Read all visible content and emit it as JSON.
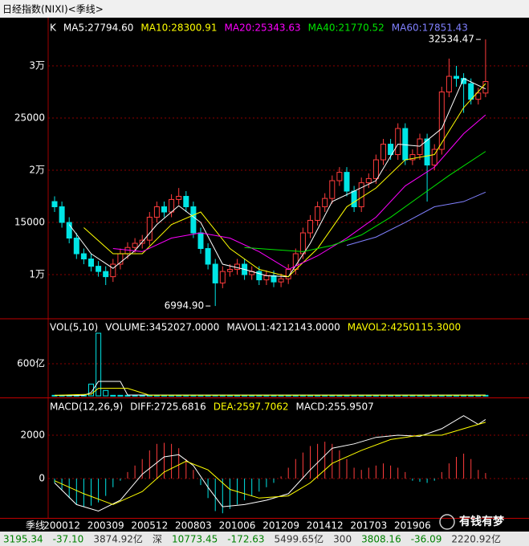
{
  "window_title": "日经指数(NIXI)<季线>",
  "period_label": "季线",
  "watermark": "有钱有梦",
  "chart_data": [
    {
      "type": "candlestick",
      "label": "K",
      "up_color": "#ff3c3c",
      "down_color": "#00e5e5",
      "categories": [
        null,
        "200012",
        null,
        null,
        null,
        null,
        null,
        "200309",
        null,
        null,
        null,
        null,
        null,
        "200512",
        null,
        null,
        null,
        null,
        null,
        "200803",
        null,
        null,
        null,
        null,
        null,
        "201006",
        null,
        null,
        null,
        null,
        null,
        "201209",
        null,
        null,
        null,
        null,
        null,
        "201412",
        null,
        null,
        null,
        null,
        null,
        "201703",
        null,
        null,
        null,
        null,
        null,
        "201906",
        null,
        null,
        null,
        null,
        null,
        null,
        null,
        null,
        null,
        null
      ],
      "ohlc": [
        [
          17000,
          17500,
          16000,
          16500
        ],
        [
          16500,
          17000,
          14500,
          15000
        ],
        [
          15000,
          15500,
          13000,
          13500
        ],
        [
          13500,
          14000,
          11500,
          12000
        ],
        [
          12000,
          12500,
          11000,
          11500
        ],
        [
          11500,
          12000,
          10300,
          10800
        ],
        [
          10800,
          11300,
          9800,
          10300
        ],
        [
          10300,
          10800,
          9000,
          9800
        ],
        [
          9800,
          11500,
          9300,
          11000
        ],
        [
          11000,
          12500,
          10500,
          12000
        ],
        [
          12000,
          13100,
          11500,
          12600
        ],
        [
          12600,
          13500,
          12100,
          13000
        ],
        [
          13000,
          13800,
          12500,
          13300
        ],
        [
          13300,
          16000,
          12800,
          15500
        ],
        [
          15500,
          17000,
          15000,
          16500
        ],
        [
          16500,
          17000,
          15500,
          16000
        ],
        [
          16000,
          17700,
          15500,
          17200
        ],
        [
          17200,
          18300,
          16700,
          17500
        ],
        [
          17500,
          18000,
          16000,
          16500
        ],
        [
          16500,
          17000,
          13500,
          14000
        ],
        [
          14000,
          14500,
          12000,
          12500
        ],
        [
          12500,
          13000,
          10500,
          11000
        ],
        [
          11000,
          11500,
          6994.9,
          9200
        ],
        [
          9200,
          10800,
          8700,
          10300
        ],
        [
          10300,
          11000,
          9800,
          10500
        ],
        [
          10500,
          11500,
          10000,
          11000
        ],
        [
          11000,
          11500,
          9500,
          10000
        ],
        [
          10000,
          10800,
          9500,
          10300
        ],
        [
          10300,
          10800,
          9000,
          9500
        ],
        [
          9500,
          10400,
          9000,
          9900
        ],
        [
          9900,
          10400,
          8800,
          9300
        ],
        [
          9300,
          10100,
          8800,
          9600
        ],
        [
          9600,
          11000,
          9100,
          10500
        ],
        [
          10500,
          12500,
          10000,
          12000
        ],
        [
          12000,
          14500,
          11500,
          14000
        ],
        [
          14000,
          15700,
          13500,
          15200
        ],
        [
          15200,
          17000,
          14700,
          16500
        ],
        [
          16500,
          17800,
          16000,
          17300
        ],
        [
          17300,
          19500,
          16800,
          19000
        ],
        [
          19000,
          20300,
          18500,
          19800
        ],
        [
          19800,
          20300,
          17500,
          18000
        ],
        [
          18000,
          18500,
          16000,
          16500
        ],
        [
          16500,
          19300,
          16000,
          18800
        ],
        [
          18800,
          19700,
          18300,
          19200
        ],
        [
          19200,
          21500,
          18700,
          21000
        ],
        [
          21000,
          23000,
          20500,
          22500
        ],
        [
          22500,
          23000,
          21000,
          21500
        ],
        [
          21500,
          24500,
          21000,
          24000
        ],
        [
          24000,
          24500,
          20500,
          21000
        ],
        [
          21000,
          22000,
          20500,
          21500
        ],
        [
          21500,
          23500,
          21000,
          23000
        ],
        [
          23000,
          23500,
          17000,
          20500
        ],
        [
          20500,
          22500,
          20000,
          22000
        ],
        [
          22000,
          28000,
          21500,
          27500
        ],
        [
          27500,
          30700,
          27000,
          29000
        ],
        [
          29000,
          30000,
          28000,
          28800
        ],
        [
          28800,
          29300,
          25500,
          28300
        ],
        [
          28300,
          28800,
          26300,
          26800
        ],
        [
          26800,
          27900,
          26300,
          27400
        ],
        [
          27400,
          32534.47,
          27000,
          28500
        ]
      ],
      "series": [
        {
          "name": "MA5:27794.60",
          "color": "#ffffff",
          "x": [
            2,
            5,
            8,
            11,
            14,
            17,
            20,
            23,
            26,
            29,
            32,
            35,
            38,
            41,
            44,
            47,
            50,
            53,
            56,
            59
          ],
          "values": [
            14800,
            12000,
            10600,
            12300,
            14800,
            16600,
            15000,
            11000,
            10500,
            9900,
            9800,
            13000,
            17000,
            18000,
            19000,
            22500,
            22300,
            24000,
            28800,
            27800
          ]
        },
        {
          "name": "MA10:28300.91",
          "color": "#ffff00",
          "x": [
            4,
            8,
            12,
            16,
            20,
            24,
            28,
            32,
            36,
            40,
            44,
            48,
            52,
            56,
            59
          ],
          "values": [
            14500,
            12000,
            12000,
            14800,
            16000,
            12500,
            10500,
            9800,
            12500,
            16500,
            18300,
            21000,
            21500,
            26000,
            28300
          ]
        },
        {
          "name": "MA20:25343.63",
          "color": "#ff00ff",
          "x": [
            8,
            12,
            16,
            20,
            24,
            28,
            32,
            36,
            40,
            44,
            48,
            52,
            56,
            59
          ],
          "values": [
            12500,
            12200,
            13500,
            14000,
            13500,
            12200,
            10500,
            11800,
            13500,
            15500,
            18500,
            20300,
            23500,
            25300
          ]
        },
        {
          "name": "MA40:21770.52",
          "color": "#00e600",
          "x": [
            26,
            30,
            34,
            38,
            42,
            46,
            50,
            54,
            59
          ],
          "values": [
            12600,
            12400,
            12200,
            12800,
            13800,
            15500,
            17500,
            19500,
            21800
          ]
        },
        {
          "name": "MA60:17851.43",
          "color": "#8080ff",
          "x": [
            40,
            44,
            48,
            52,
            56,
            59
          ],
          "values": [
            12800,
            13600,
            15000,
            16500,
            17000,
            17900
          ]
        }
      ],
      "annotations": [
        {
          "value": 32534.47,
          "label": "32534.47"
        },
        {
          "value": 6994.9,
          "label": "6994.90"
        }
      ],
      "ylim": [
        5770,
        34620
      ],
      "yticks": [
        {
          "value": 10000,
          "label": "1万"
        },
        15000,
        {
          "value": 20000,
          "label": "2万"
        },
        25000,
        {
          "value": 30000,
          "label": "3万"
        }
      ]
    },
    {
      "type": "volume",
      "label": "VOL(5,10)",
      "name": "VOLUME:3452027.0000",
      "color": "#00e5e5",
      "values": [
        10,
        10,
        10,
        10,
        12,
        220,
        1170,
        100,
        10,
        10,
        10,
        10,
        10,
        10,
        10,
        10,
        10,
        10,
        10,
        10,
        10,
        10,
        12,
        10,
        10,
        10,
        10,
        10,
        10,
        10,
        10,
        10,
        10,
        10,
        10,
        10,
        10,
        10,
        10,
        10,
        10,
        10,
        10,
        10,
        10,
        10,
        10,
        10,
        10,
        10,
        10,
        10,
        10,
        10,
        10,
        10,
        10,
        10,
        10,
        10
      ],
      "series": [
        {
          "name": "MAVOL1:4212143.0000",
          "color": "#ffffff",
          "x": [
            0,
            4,
            5,
            6,
            9,
            10,
            59
          ],
          "values": [
            10,
            10,
            60,
            270,
            270,
            15,
            15
          ]
        },
        {
          "name": "MAVOL2:4250115.3000",
          "color": "#ffff00",
          "x": [
            0,
            5,
            6,
            10,
            13,
            59
          ],
          "values": [
            10,
            30,
            140,
            140,
            12,
            12
          ]
        }
      ],
      "ylim": [
        0,
        1425
      ],
      "yticks": [
        {
          "value": 600,
          "label": "600亿"
        }
      ]
    },
    {
      "type": "macd",
      "label": "MACD(12,26,9)",
      "histogram": {
        "name": "MACD:255.9507",
        "values": [
          -200,
          -500,
          -900,
          -1200,
          -1300,
          -1250,
          -1100,
          -800,
          -400,
          -100,
          300,
          600,
          900,
          1300,
          1600,
          1650,
          1600,
          1400,
          900,
          400,
          -300,
          -900,
          -1500,
          -1600,
          -1400,
          -1200,
          -1000,
          -800,
          -600,
          -400,
          -200,
          100,
          500,
          900,
          1200,
          1500,
          1600,
          1700,
          1600,
          1300,
          900,
          500,
          400,
          500,
          600,
          700,
          600,
          500,
          300,
          -100,
          -150,
          -200,
          -100,
          300,
          700,
          1000,
          1150,
          900,
          400,
          255.9507
        ]
      },
      "series": [
        {
          "name": "DIFF:2725.6816",
          "color": "#ffffff",
          "x": [
            0,
            3,
            6,
            9,
            12,
            15,
            17,
            19,
            21,
            23,
            26,
            29,
            32,
            35,
            38,
            41,
            44,
            47,
            50,
            53,
            56,
            58,
            59
          ],
          "values": [
            -200,
            -1200,
            -1500,
            -1000,
            200,
            1000,
            1100,
            600,
            -400,
            -1300,
            -1200,
            -1000,
            -700,
            400,
            1400,
            1600,
            1900,
            2000,
            1950,
            2300,
            2900,
            2500,
            2725.6816
          ]
        },
        {
          "name": "DEA:2597.7062",
          "color": "#ffff00",
          "x": [
            0,
            4,
            8,
            12,
            15,
            18,
            21,
            24,
            28,
            32,
            35,
            38,
            42,
            46,
            50,
            53,
            56,
            59
          ],
          "values": [
            -100,
            -700,
            -1200,
            -600,
            300,
            800,
            400,
            -500,
            -900,
            -800,
            -200,
            700,
            1300,
            1800,
            2000,
            2000,
            2300,
            2597.7062
          ]
        }
      ],
      "ylim": [
        -1815,
        3667
      ],
      "yticks": [
        0,
        2000
      ]
    }
  ],
  "status_bar": [
    {
      "text": "3195.34",
      "color": "#008000"
    },
    {
      "text": "-37.10",
      "color": "#008000"
    },
    {
      "text": "3874.92亿",
      "color": "#333333"
    },
    {
      "text": "深",
      "color": "#333333"
    },
    {
      "text": "10773.45",
      "color": "#008000"
    },
    {
      "text": "-172.63",
      "color": "#008000"
    },
    {
      "text": "5499.65亿",
      "color": "#333333"
    },
    {
      "text": "300",
      "color": "#333333"
    },
    {
      "text": "3808.16",
      "color": "#008000"
    },
    {
      "text": "-36.09",
      "color": "#008000"
    },
    {
      "text": "2220.92亿",
      "color": "#333333"
    }
  ]
}
